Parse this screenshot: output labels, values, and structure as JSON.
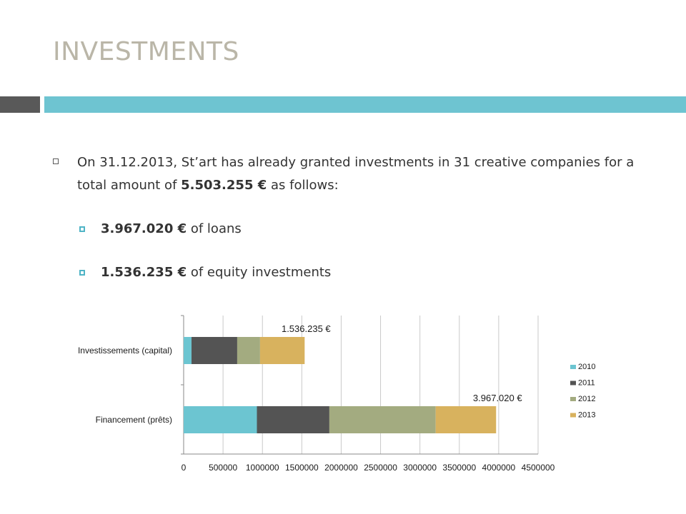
{
  "slide": {
    "title": "INVESTMENTS",
    "paragraph": {
      "prefix": "On 31.12.2013, St’art has already granted investments in 31 creative companies for a total amount of ",
      "amount": "5.503.255 €",
      "suffix": " as follows:"
    },
    "items": [
      {
        "amount": "3.967.020 €",
        "text": " of loans"
      },
      {
        "amount": "1.536.235 €",
        "text": " of equity investments"
      }
    ]
  },
  "colors": {
    "title": "#bab6a8",
    "band_dark": "#595959",
    "band_teal": "#6ec4d1",
    "bullet": "#4fb4c6"
  },
  "chart_data": {
    "type": "bar",
    "orientation": "horizontal",
    "stacked": true,
    "categories": [
      "Investissements (capital)",
      "Financement (prêts)"
    ],
    "series": [
      {
        "name": "2010",
        "color": "#6cc5d1",
        "values": [
          100000,
          930000
        ]
      },
      {
        "name": "2011",
        "color": "#545454",
        "values": [
          580000,
          920000
        ]
      },
      {
        "name": "2012",
        "color": "#a3ab80",
        "values": [
          290000,
          1350000
        ]
      },
      {
        "name": "2013",
        "color": "#d8b25e",
        "values": [
          566235,
          767020
        ]
      }
    ],
    "data_labels": [
      "1.536.235 €",
      "3.967.020 €"
    ],
    "xlim": [
      0,
      4500000
    ],
    "x_ticks": [
      0,
      500000,
      1000000,
      1500000,
      2000000,
      2500000,
      3000000,
      3500000,
      4000000,
      4500000
    ],
    "x_tick_labels": [
      "0",
      "500000",
      "1000000",
      "1500000",
      "2000000",
      "2500000",
      "3000000",
      "3500000",
      "4000000",
      "4500000"
    ],
    "grid": true,
    "legend": "right"
  }
}
